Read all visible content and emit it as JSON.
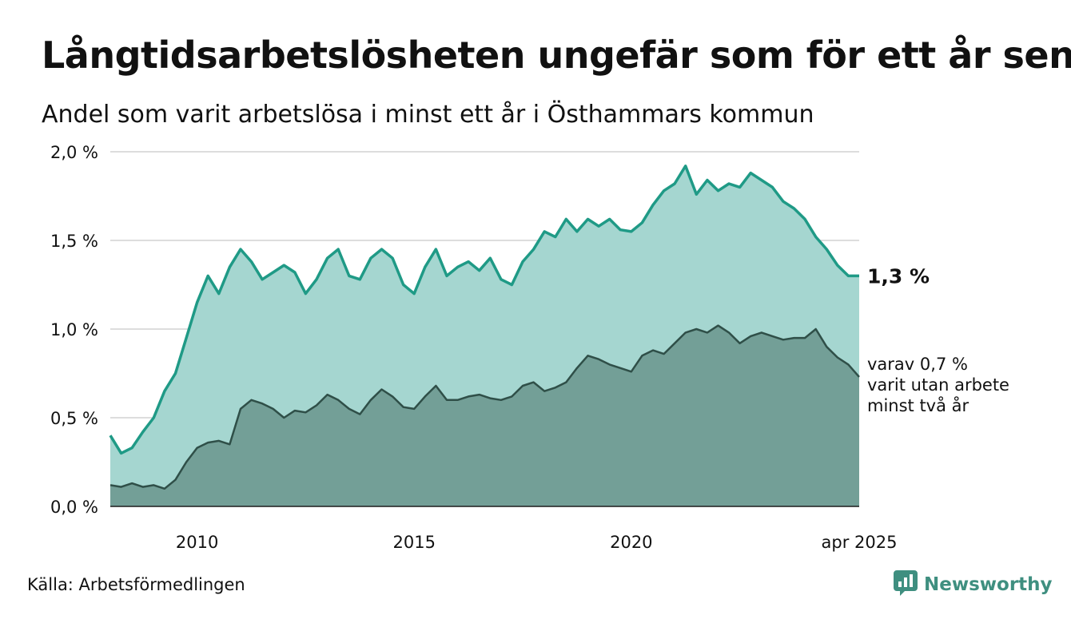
{
  "title": "Långtidsarbetslösheten ungefär som för ett år sen",
  "subtitle": "Andel som varit arbetslösa i minst ett år i Östhammars kommun",
  "source": "Källa: Arbetsförmedlingen",
  "brand": "Newsworthy",
  "colors": {
    "main_line": "#1f9a86",
    "main_fill": "#a5d6d0",
    "sub_line": "#2f4f48",
    "sub_fill": "#739f97",
    "grid": "#dddddd",
    "brand": "#3f8f80"
  },
  "icons": {
    "brand_logo": "newsworthy-chart-bubble-icon"
  },
  "chart_data": {
    "type": "area",
    "xlim": [
      "2008-01",
      "2025-04"
    ],
    "ylim": [
      0,
      2.0
    ],
    "y_ticks": [
      "0,0 %",
      "0,5 %",
      "1,0 %",
      "1,5 %",
      "2,0 %"
    ],
    "x_ticks": [
      {
        "label": "2010",
        "x": "2010-01"
      },
      {
        "label": "2015",
        "x": "2015-01"
      },
      {
        "label": "2020",
        "x": "2020-01"
      },
      {
        "label": "apr 2025",
        "x": "2025-04"
      }
    ],
    "grid": true,
    "end_labels": {
      "main": "1,3 %",
      "sub": [
        "varav 0,7 %",
        "varit utan arbete",
        "minst två år"
      ]
    },
    "series": [
      {
        "key": "main",
        "x": [
          "2008-01",
          "2008-04",
          "2008-07",
          "2008-10",
          "2009-01",
          "2009-04",
          "2009-07",
          "2009-10",
          "2010-01",
          "2010-04",
          "2010-07",
          "2010-10",
          "2011-01",
          "2011-04",
          "2011-07",
          "2011-10",
          "2012-01",
          "2012-04",
          "2012-07",
          "2012-10",
          "2013-01",
          "2013-04",
          "2013-07",
          "2013-10",
          "2014-01",
          "2014-04",
          "2014-07",
          "2014-10",
          "2015-01",
          "2015-04",
          "2015-07",
          "2015-10",
          "2016-01",
          "2016-04",
          "2016-07",
          "2016-10",
          "2017-01",
          "2017-04",
          "2017-07",
          "2017-10",
          "2018-01",
          "2018-04",
          "2018-07",
          "2018-10",
          "2019-01",
          "2019-04",
          "2019-07",
          "2019-10",
          "2020-01",
          "2020-04",
          "2020-07",
          "2020-10",
          "2021-01",
          "2021-04",
          "2021-07",
          "2021-10",
          "2022-01",
          "2022-04",
          "2022-07",
          "2022-10",
          "2023-01",
          "2023-04",
          "2023-07",
          "2023-10",
          "2024-01",
          "2024-04",
          "2024-07",
          "2024-10",
          "2025-01",
          "2025-04"
        ],
        "values": [
          0.4,
          0.3,
          0.33,
          0.42,
          0.5,
          0.65,
          0.75,
          0.95,
          1.15,
          1.3,
          1.2,
          1.35,
          1.45,
          1.38,
          1.28,
          1.32,
          1.36,
          1.32,
          1.2,
          1.28,
          1.4,
          1.45,
          1.3,
          1.28,
          1.4,
          1.45,
          1.4,
          1.25,
          1.2,
          1.35,
          1.45,
          1.3,
          1.35,
          1.38,
          1.33,
          1.4,
          1.28,
          1.25,
          1.38,
          1.45,
          1.55,
          1.52,
          1.62,
          1.55,
          1.62,
          1.58,
          1.62,
          1.56,
          1.55,
          1.6,
          1.7,
          1.78,
          1.82,
          1.92,
          1.76,
          1.84,
          1.78,
          1.82,
          1.8,
          1.88,
          1.84,
          1.8,
          1.72,
          1.68,
          1.62,
          1.52,
          1.45,
          1.36,
          1.3,
          1.3
        ]
      },
      {
        "key": "sub",
        "x": [
          "2008-01",
          "2008-04",
          "2008-07",
          "2008-10",
          "2009-01",
          "2009-04",
          "2009-07",
          "2009-10",
          "2010-01",
          "2010-04",
          "2010-07",
          "2010-10",
          "2011-01",
          "2011-04",
          "2011-07",
          "2011-10",
          "2012-01",
          "2012-04",
          "2012-07",
          "2012-10",
          "2013-01",
          "2013-04",
          "2013-07",
          "2013-10",
          "2014-01",
          "2014-04",
          "2014-07",
          "2014-10",
          "2015-01",
          "2015-04",
          "2015-07",
          "2015-10",
          "2016-01",
          "2016-04",
          "2016-07",
          "2016-10",
          "2017-01",
          "2017-04",
          "2017-07",
          "2017-10",
          "2018-01",
          "2018-04",
          "2018-07",
          "2018-10",
          "2019-01",
          "2019-04",
          "2019-07",
          "2019-10",
          "2020-01",
          "2020-04",
          "2020-07",
          "2020-10",
          "2021-01",
          "2021-04",
          "2021-07",
          "2021-10",
          "2022-01",
          "2022-04",
          "2022-07",
          "2022-10",
          "2023-01",
          "2023-04",
          "2023-07",
          "2023-10",
          "2024-01",
          "2024-04",
          "2024-07",
          "2024-10",
          "2025-01",
          "2025-04"
        ],
        "values": [
          0.12,
          0.11,
          0.13,
          0.11,
          0.12,
          0.1,
          0.15,
          0.25,
          0.33,
          0.36,
          0.37,
          0.35,
          0.55,
          0.6,
          0.58,
          0.55,
          0.5,
          0.54,
          0.53,
          0.57,
          0.63,
          0.6,
          0.55,
          0.52,
          0.6,
          0.66,
          0.62,
          0.56,
          0.55,
          0.62,
          0.68,
          0.6,
          0.6,
          0.62,
          0.63,
          0.61,
          0.6,
          0.62,
          0.68,
          0.7,
          0.65,
          0.67,
          0.7,
          0.78,
          0.85,
          0.83,
          0.8,
          0.78,
          0.76,
          0.85,
          0.88,
          0.86,
          0.92,
          0.98,
          1.0,
          0.98,
          1.02,
          0.98,
          0.92,
          0.96,
          0.98,
          0.96,
          0.94,
          0.95,
          0.95,
          1.0,
          0.9,
          0.84,
          0.8,
          0.73
        ]
      }
    ]
  }
}
